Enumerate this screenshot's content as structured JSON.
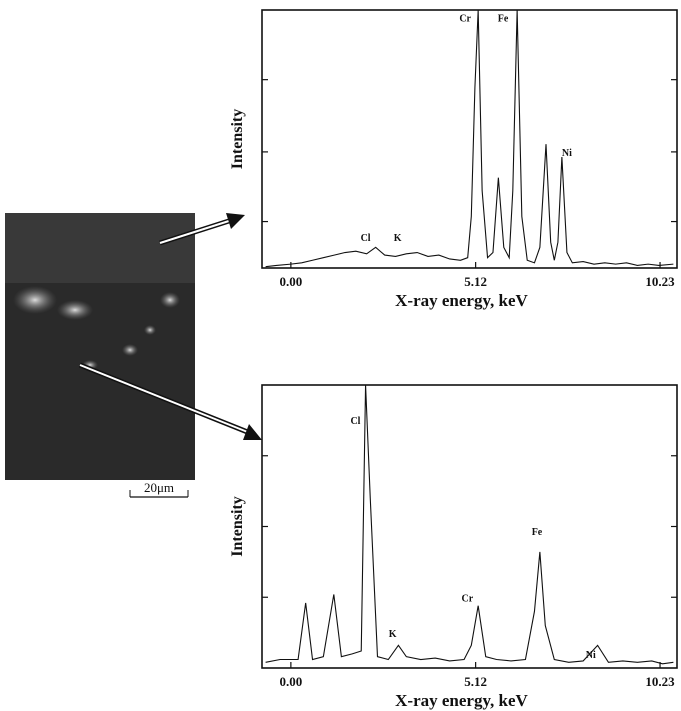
{
  "chart_data": [
    {
      "type": "line",
      "xlabel": "X-ray energy, keV",
      "ylabel": "Intensity",
      "color": "#111111",
      "xlim": [
        -0.8,
        10.7
      ],
      "xticks": [
        {
          "value": 0,
          "label": "0.00"
        },
        5.12,
        10.23
      ],
      "ylim": [
        0,
        100
      ],
      "yticks": [
        18,
        45,
        73
      ],
      "x": [
        -0.7,
        -0.4,
        0,
        0.3,
        0.6,
        0.9,
        1.2,
        1.5,
        1.8,
        2.1,
        2.35,
        2.6,
        2.9,
        3.2,
        3.5,
        3.8,
        4.1,
        4.4,
        4.7,
        4.9,
        5.0,
        5.1,
        5.19,
        5.3,
        5.45,
        5.6,
        5.75,
        5.9,
        6.05,
        6.15,
        6.27,
        6.4,
        6.55,
        6.75,
        6.9,
        7.07,
        7.2,
        7.3,
        7.4,
        7.51,
        7.65,
        7.8,
        8.1,
        8.4,
        8.7,
        9.0,
        9.3,
        9.6,
        9.9,
        10.2,
        10.6
      ],
      "values": [
        0.5,
        1,
        1.5,
        2,
        3,
        4,
        5,
        6,
        6.5,
        5.5,
        8,
        5,
        4.5,
        5.5,
        6,
        4.5,
        5,
        3.5,
        3,
        4,
        20,
        70,
        100,
        30,
        4,
        6,
        35,
        8,
        4,
        30,
        100,
        20,
        3,
        2,
        8,
        48,
        10,
        3,
        10,
        43,
        6,
        2,
        2.5,
        1.5,
        2,
        1.5,
        2,
        1,
        1.5,
        1,
        1.5
      ],
      "annotations": [
        {
          "text": "Cr",
          "x": 4.83,
          "y": 97
        },
        {
          "text": "Fe",
          "x": 5.88,
          "y": 97
        },
        {
          "text": "Cl",
          "x": 2.07,
          "y": 12
        },
        {
          "text": "K",
          "x": 2.96,
          "y": 12
        },
        {
          "text": "Ni",
          "x": 7.65,
          "y": 45
        }
      ]
    },
    {
      "type": "line",
      "xlabel": "X-ray energy, keV",
      "ylabel": "Intensity",
      "color": "#111111",
      "xlim": [
        -0.8,
        10.7
      ],
      "xticks": [
        {
          "value": 0,
          "label": "0.00"
        },
        5.12,
        10.23
      ],
      "ylim": [
        0,
        100
      ],
      "yticks": [
        25,
        50,
        75
      ],
      "x": [
        -0.7,
        -0.3,
        0.2,
        0.41,
        0.6,
        0.9,
        1.19,
        1.4,
        1.7,
        1.95,
        2.07,
        2.2,
        2.4,
        2.7,
        2.98,
        3.2,
        3.6,
        4.0,
        4.4,
        4.8,
        5.0,
        5.19,
        5.4,
        5.7,
        6.1,
        6.5,
        6.75,
        6.9,
        7.05,
        7.3,
        7.7,
        8.1,
        8.5,
        8.8,
        9.2,
        9.6,
        10.0,
        10.3,
        10.6
      ],
      "values": [
        2,
        3,
        3,
        23,
        3,
        4,
        26,
        4,
        5,
        6,
        100,
        60,
        4,
        3,
        8,
        4,
        3,
        3.5,
        2.5,
        3,
        8,
        22,
        4,
        3,
        2.5,
        3,
        20,
        41,
        15,
        3,
        2,
        2.5,
        8,
        2,
        2.5,
        2,
        2.5,
        1.5,
        2
      ],
      "annotations": [
        {
          "text": "Cl",
          "x": 1.79,
          "y": 87.6
        },
        {
          "text": "K",
          "x": 2.82,
          "y": 12.4
        },
        {
          "text": "Cr",
          "x": 4.89,
          "y": 25
        },
        {
          "text": "Fe",
          "x": 6.82,
          "y": 48.4
        },
        {
          "text": "Ni",
          "x": 8.31,
          "y": 5
        }
      ]
    }
  ],
  "micrograph": {
    "scale_bar": "20μm"
  }
}
